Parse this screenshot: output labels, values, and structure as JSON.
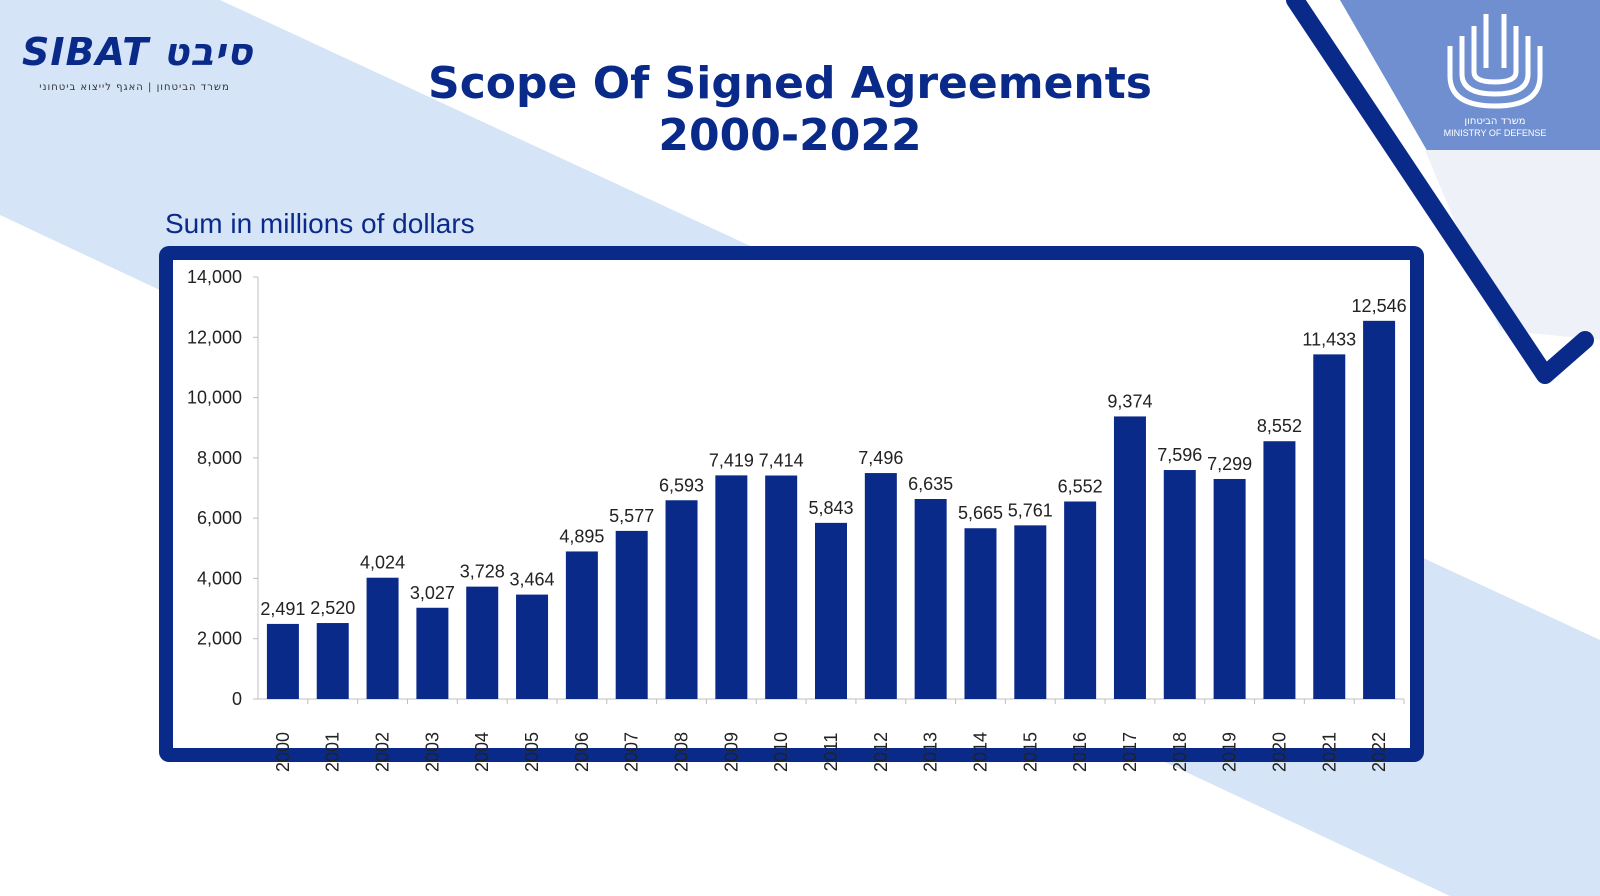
{
  "logo": {
    "name": "SIBAT סיבט",
    "subtitle": "משרד הביטחון | האגף לייצוא ביטחוני"
  },
  "ministry_logo": {
    "hebrew": "משרד הביטחון",
    "english": "MINISTRY OF DEFENSE"
  },
  "colors": {
    "primary": "#0a2a8a",
    "bar": "#0a2a8a",
    "light_band": "#d6e4f7",
    "mid_band": "#6f8fd0"
  },
  "chart_data": {
    "type": "bar",
    "title": "Scope Of Signed Agreements",
    "subtitle": "2000-2022",
    "ylabel": "Sum in millions of dollars",
    "xlabel": "",
    "ylim": [
      0,
      14000
    ],
    "yticks": [
      "0",
      "2,000",
      "4,000",
      "6,000",
      "8,000",
      "10,000",
      "12,000",
      "14,000"
    ],
    "grid": false,
    "categories": [
      "2000",
      "2001",
      "2002",
      "2003",
      "2004",
      "2005",
      "2006",
      "2007",
      "2008",
      "2009",
      "2010",
      "2011",
      "2012",
      "2013",
      "2014",
      "2015",
      "2016",
      "2017",
      "2018",
      "2019",
      "2020",
      "2021",
      "2022"
    ],
    "values": [
      2491,
      2520,
      4024,
      3027,
      3728,
      3464,
      4895,
      5577,
      6593,
      7419,
      7414,
      5843,
      7496,
      6635,
      5665,
      5761,
      6552,
      9374,
      7596,
      7299,
      8552,
      11433,
      12546
    ],
    "value_labels": [
      "2,491",
      "2,520",
      "4,024",
      "3,027",
      "3,728",
      "3,464",
      "4,895",
      "5,577",
      "6,593",
      "7,419",
      "7,414",
      "5,843",
      "7,496",
      "6,635",
      "5,665",
      "5,761",
      "6,552",
      "9,374",
      "7,596",
      "7,299",
      "8,552",
      "11,433",
      "12,546"
    ]
  }
}
